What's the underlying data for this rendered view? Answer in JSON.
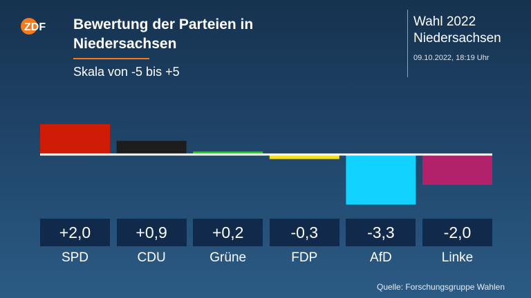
{
  "logo": {
    "text": "ZDF",
    "icon": "zdf-logo-icon",
    "color": "#f47a20"
  },
  "header": {
    "title": "Bewertung der Parteien in Niedersachsen",
    "subtitle": "Skala von -5 bis +5"
  },
  "info": {
    "title_line1": "Wahl 2022",
    "title_line2": "Niedersachsen",
    "date": "09.10.2022, 18:19 Uhr"
  },
  "source": "Quelle: Forschungsgruppe Wahlen",
  "chart_data": {
    "type": "bar",
    "title": "Bewertung der Parteien in Niedersachsen",
    "subtitle": "Skala von -5 bis +5",
    "categories": [
      "SPD",
      "CDU",
      "Grüne",
      "FDP",
      "AfD",
      "Linke"
    ],
    "values": [
      2.0,
      0.9,
      0.2,
      -0.3,
      -3.3,
      -2.0
    ],
    "value_labels": [
      "+2,0",
      "+0,9",
      "+0,2",
      "-0,3",
      "-3,3",
      "-2,0"
    ],
    "colors": [
      "#cf1c07",
      "#1d1d1d",
      "#2fc42f",
      "#f6de1c",
      "#12d2ff",
      "#b1226a"
    ],
    "ylim": [
      -5,
      5
    ],
    "grid": false,
    "legend": "none"
  }
}
